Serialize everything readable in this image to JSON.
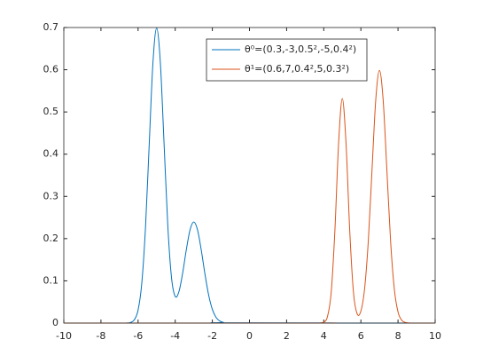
{
  "chart_data": {
    "type": "line",
    "series": [
      {
        "name": "θ⁰=(0.3,-3,0.5²,-5,0.4²)",
        "color": "#0072BD",
        "x": [
          -10,
          -6.8,
          -6.6,
          -6.4,
          -6.2,
          -6.0,
          -5.8,
          -5.6,
          -5.4,
          -5.2,
          -5.0,
          -4.8,
          -4.6,
          -4.4,
          -4.2,
          -4.0,
          -3.8,
          -3.6,
          -3.4,
          -3.2,
          -3.0,
          -2.8,
          -2.6,
          -2.4,
          -2.2,
          -2.0,
          -1.8,
          -1.6,
          -1.4,
          -1.2,
          10
        ],
        "values": [
          0,
          0,
          0.0002,
          0.0015,
          0.0078,
          0.0307,
          0.0945,
          0.2267,
          0.4235,
          0.6162,
          0.6983,
          0.6166,
          0.4249,
          0.2314,
          0.1079,
          0.0631,
          0.0743,
          0.1181,
          0.1741,
          0.221,
          0.2394,
          0.221,
          0.1738,
          0.1165,
          0.0666,
          0.0324,
          0.0134,
          0.0048,
          0.0014,
          0.0004,
          0
        ]
      },
      {
        "name": "θ¹=(0.6,7,0.4²,5,0.3²)",
        "color": "#D95319",
        "x": [
          -10,
          3.6,
          3.8,
          4.0,
          4.2,
          4.4,
          4.6,
          4.8,
          5.0,
          5.2,
          5.4,
          5.6,
          5.8,
          6.0,
          6.2,
          6.4,
          6.6,
          6.8,
          7.0,
          7.2,
          7.4,
          7.6,
          7.8,
          8.0,
          8.2,
          8.4,
          8.6,
          8.8,
          10
        ],
        "values": [
          0,
          0,
          0.0002,
          0.0021,
          0.0152,
          0.072,
          0.2187,
          0.4259,
          0.5319,
          0.4259,
          0.2189,
          0.0733,
          0.0219,
          0.0283,
          0.0812,
          0.1943,
          0.3629,
          0.5281,
          0.5984,
          0.5281,
          0.3629,
          0.1943,
          0.081,
          0.0263,
          0.0067,
          0.0013,
          0.0002,
          0,
          0
        ]
      }
    ],
    "xlim": [
      -10,
      10
    ],
    "xticks": [
      -10,
      -8,
      -6,
      -4,
      -2,
      0,
      2,
      4,
      6,
      8,
      10
    ],
    "ylim": [
      0,
      0.7
    ],
    "yticks": [
      0,
      0.1,
      0.2,
      0.3,
      0.4,
      0.5,
      0.6,
      0.7
    ],
    "legend": "top-center"
  }
}
